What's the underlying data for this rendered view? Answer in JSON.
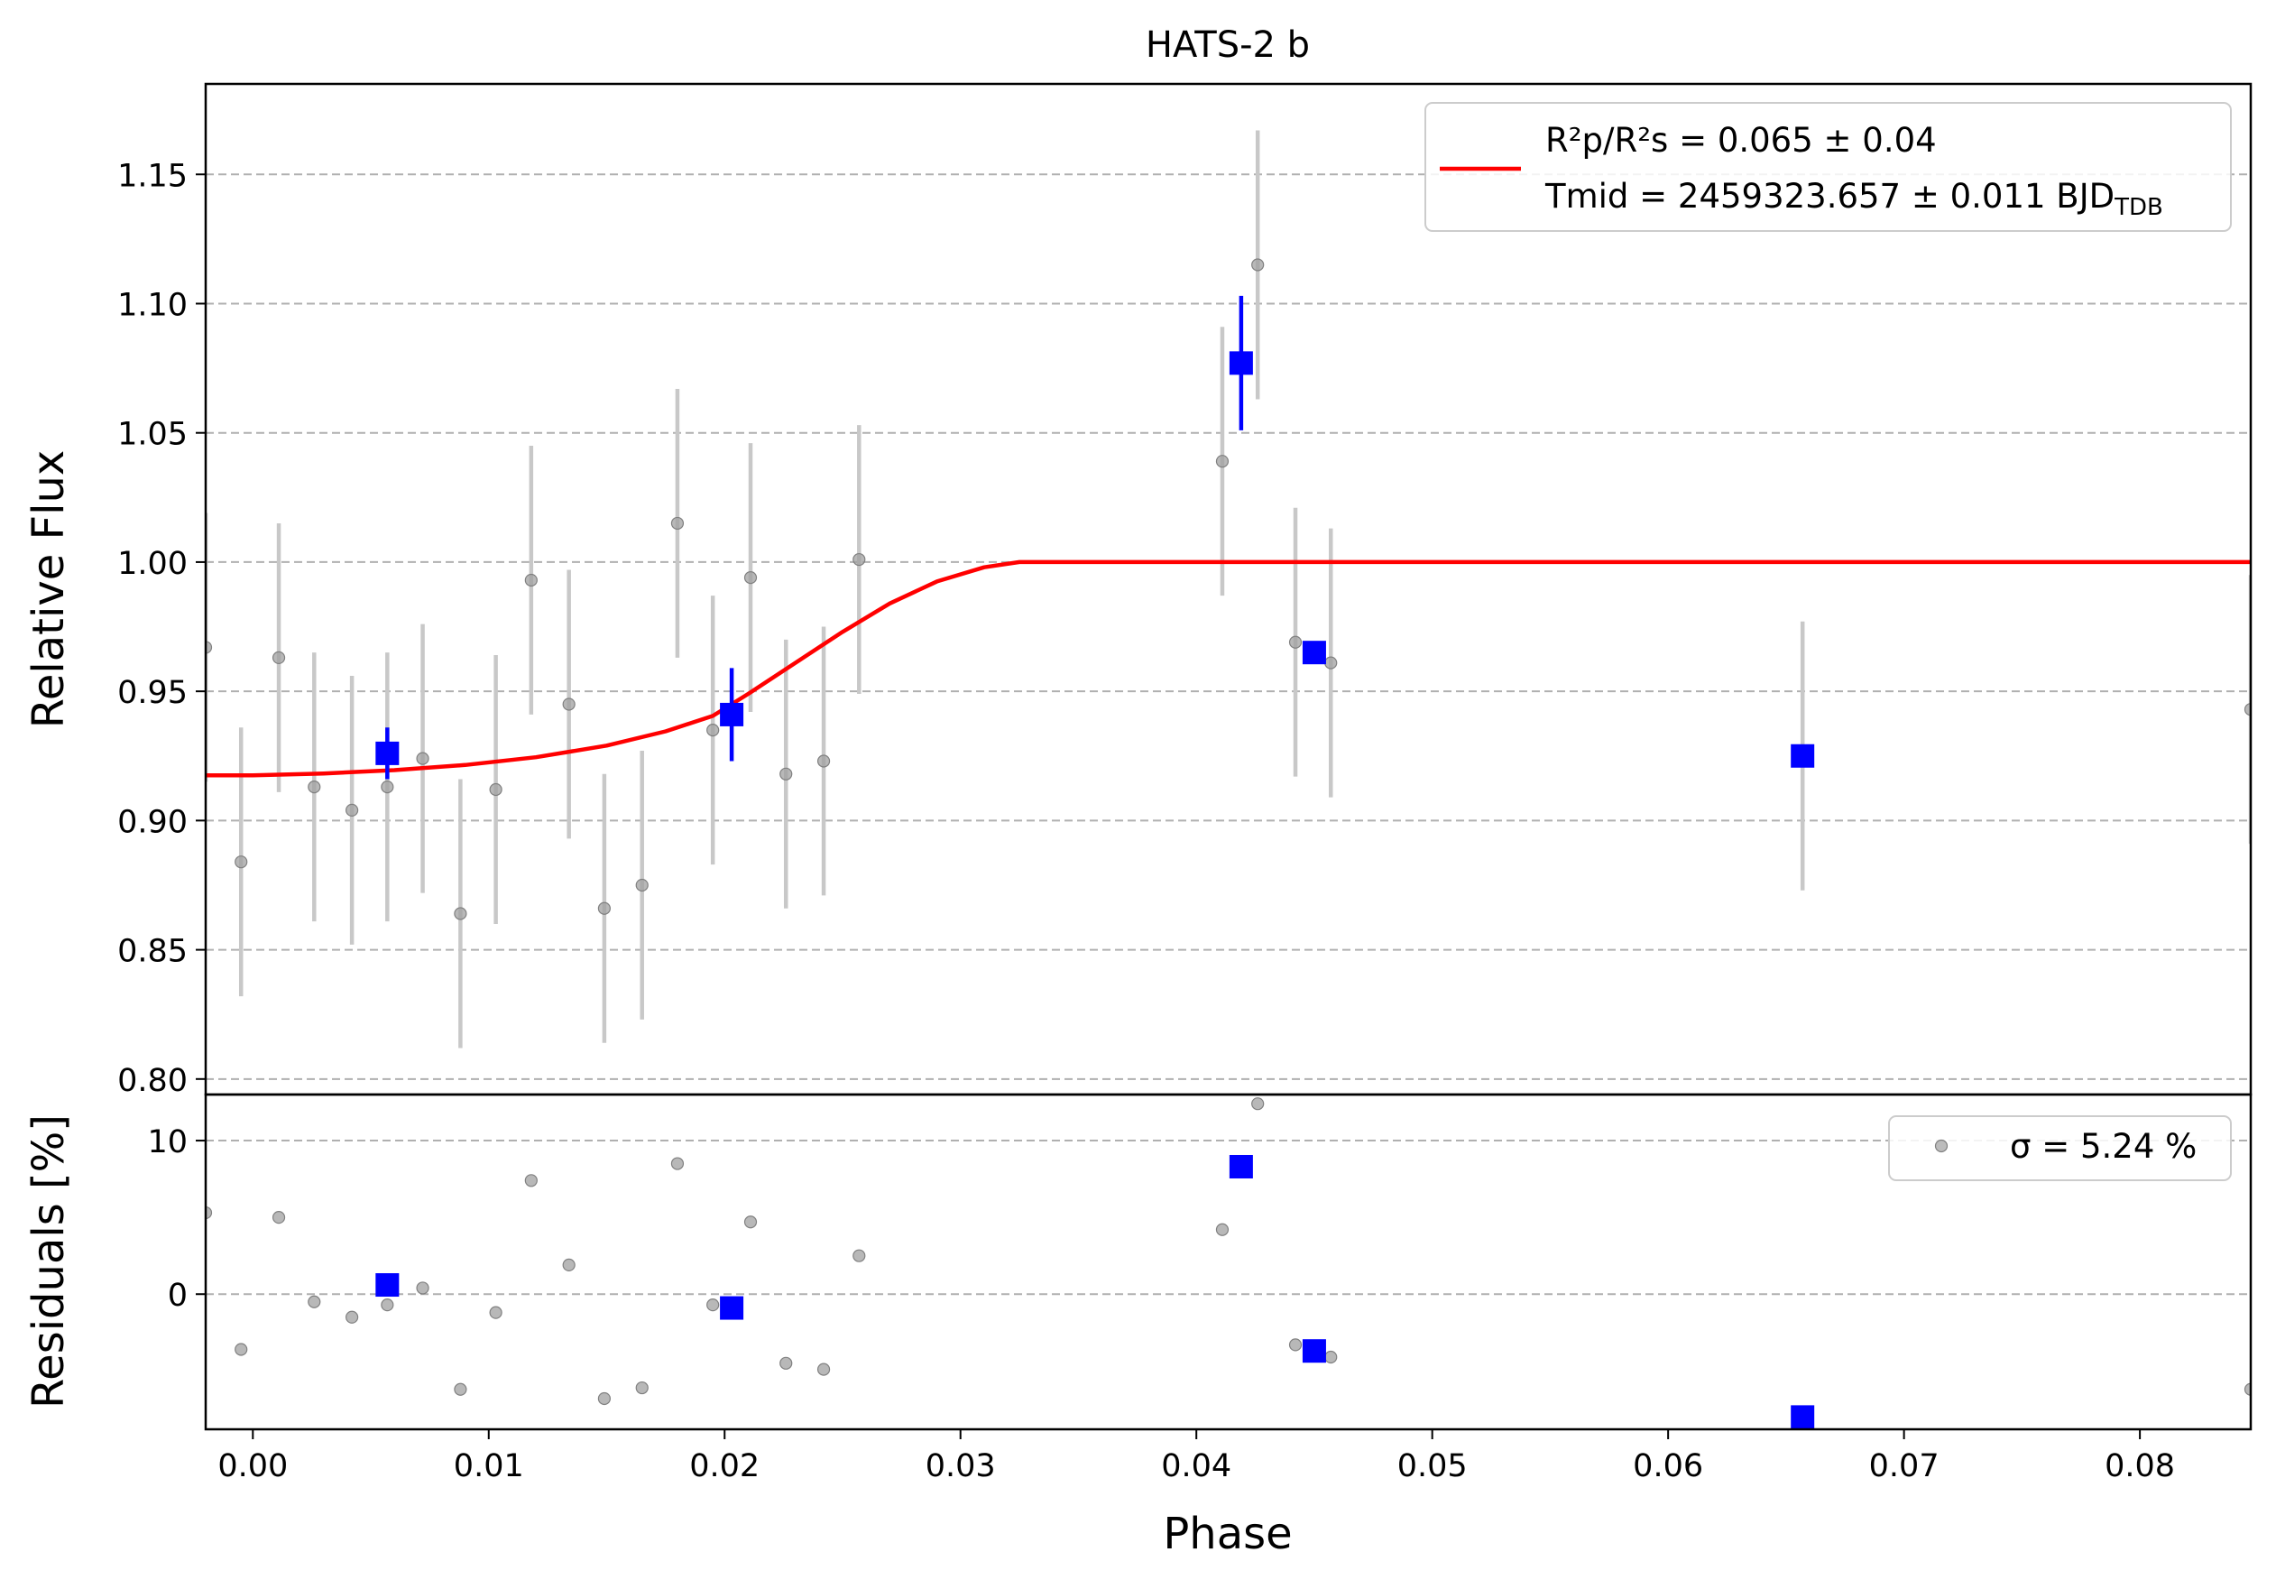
{
  "chart_data": [
    {
      "type": "scatter",
      "panel": "main",
      "title": "HATS-2 b",
      "xlabel": "",
      "ylabel": "Relative Flux",
      "xlim": [
        -0.002,
        0.0847
      ],
      "ylim": [
        0.794,
        1.185
      ],
      "yticks": [
        "0.80",
        "0.85",
        "0.90",
        "0.95",
        "1.00",
        "1.05",
        "1.10",
        "1.15"
      ],
      "grid": "horizontal dashed",
      "legend": {
        "placement": "upper right",
        "line1": "R²p/R²s = 0.065 ± 0.04",
        "line2": "Tmid = 2459323.657 ± 0.011 BJD",
        "line2_subscript": "TDB",
        "line_color": "#ff0000"
      },
      "series": [
        {
          "kind": "raw",
          "color": "#a0a0a0",
          "points": [
            {
              "x": -0.002,
              "y": 0.967,
              "err": 0.052
            },
            {
              "x": -0.0005,
              "y": 0.884,
              "err": 0.052
            },
            {
              "x": 0.0011,
              "y": 0.963,
              "err": 0.052
            },
            {
              "x": 0.0026,
              "y": 0.913,
              "err": 0.052
            },
            {
              "x": 0.0042,
              "y": 0.904,
              "err": 0.052
            },
            {
              "x": 0.0057,
              "y": 0.913,
              "err": 0.052
            },
            {
              "x": 0.0072,
              "y": 0.924,
              "err": 0.052
            },
            {
              "x": 0.0088,
              "y": 0.864,
              "err": 0.052
            },
            {
              "x": 0.0103,
              "y": 0.912,
              "err": 0.052
            },
            {
              "x": 0.0118,
              "y": 0.993,
              "err": 0.052
            },
            {
              "x": 0.0134,
              "y": 0.945,
              "err": 0.052
            },
            {
              "x": 0.0149,
              "y": 0.866,
              "err": 0.052
            },
            {
              "x": 0.0165,
              "y": 0.875,
              "err": 0.052
            },
            {
              "x": 0.018,
              "y": 1.015,
              "err": 0.052
            },
            {
              "x": 0.0195,
              "y": 0.935,
              "err": 0.052
            },
            {
              "x": 0.0211,
              "y": 0.994,
              "err": 0.052
            },
            {
              "x": 0.0226,
              "y": 0.918,
              "err": 0.052
            },
            {
              "x": 0.0242,
              "y": 0.923,
              "err": 0.052
            },
            {
              "x": 0.0257,
              "y": 1.001,
              "err": 0.052
            },
            {
              "x": 0.0411,
              "y": 1.039,
              "err": 0.052
            },
            {
              "x": 0.0426,
              "y": 1.115,
              "err": 0.052
            },
            {
              "x": 0.0442,
              "y": 0.969,
              "err": 0.052
            },
            {
              "x": 0.0457,
              "y": 0.961,
              "err": 0.052
            },
            {
              "x": 0.0657,
              "y": 0.925,
              "err": 0.052
            },
            {
              "x": 0.0847,
              "y": 0.943,
              "err": 0.052
            }
          ]
        },
        {
          "kind": "binned",
          "color": "#0000ff",
          "points": [
            {
              "x": 0.0057,
              "y": 0.926,
              "err": 0.01
            },
            {
              "x": 0.0203,
              "y": 0.941,
              "err": 0.018
            },
            {
              "x": 0.0419,
              "y": 1.077,
              "err": 0.026
            },
            {
              "x": 0.045,
              "y": 0.965,
              "err": 0.0
            },
            {
              "x": 0.0657,
              "y": 0.925,
              "err": 0.0
            }
          ]
        },
        {
          "kind": "model",
          "color": "#ff0000",
          "points": [
            {
              "x": -0.002,
              "y": 0.9175
            },
            {
              "x": 0.0,
              "y": 0.9175
            },
            {
              "x": 0.003,
              "y": 0.9182
            },
            {
              "x": 0.006,
              "y": 0.9195
            },
            {
              "x": 0.009,
              "y": 0.9215
            },
            {
              "x": 0.012,
              "y": 0.9245
            },
            {
              "x": 0.015,
              "y": 0.929
            },
            {
              "x": 0.0175,
              "y": 0.9345
            },
            {
              "x": 0.0195,
              "y": 0.9405
            },
            {
              "x": 0.021,
              "y": 0.949
            },
            {
              "x": 0.023,
              "y": 0.961
            },
            {
              "x": 0.025,
              "y": 0.973
            },
            {
              "x": 0.027,
              "y": 0.984
            },
            {
              "x": 0.029,
              "y": 0.9925
            },
            {
              "x": 0.031,
              "y": 0.998
            },
            {
              "x": 0.0325,
              "y": 1.0
            },
            {
              "x": 0.04,
              "y": 1.0
            },
            {
              "x": 0.06,
              "y": 1.0
            },
            {
              "x": 0.0847,
              "y": 1.0
            }
          ]
        }
      ]
    },
    {
      "type": "scatter",
      "panel": "residuals",
      "xlabel": "Phase",
      "ylabel": "Residuals [%]",
      "xlim": [
        -0.002,
        0.0847
      ],
      "ylim": [
        -8.8,
        13.0
      ],
      "xticks": [
        "0.00",
        "0.01",
        "0.02",
        "0.03",
        "0.04",
        "0.05",
        "0.06",
        "0.07",
        "0.08"
      ],
      "yticks": [
        "0",
        "10"
      ],
      "grid": "horizontal dashed",
      "legend": {
        "placement": "upper right",
        "label": "σ = 5.24 %"
      },
      "series": [
        {
          "kind": "raw",
          "color": "#a0a0a0",
          "points": [
            {
              "x": -0.002,
              "y": 5.3
            },
            {
              "x": -0.0005,
              "y": -3.6
            },
            {
              "x": 0.0011,
              "y": 5.0
            },
            {
              "x": 0.0026,
              "y": -0.5
            },
            {
              "x": 0.0042,
              "y": -1.5
            },
            {
              "x": 0.0057,
              "y": -0.7
            },
            {
              "x": 0.0072,
              "y": 0.4
            },
            {
              "x": 0.0088,
              "y": -6.2
            },
            {
              "x": 0.0103,
              "y": -1.2
            },
            {
              "x": 0.0118,
              "y": 7.4
            },
            {
              "x": 0.0134,
              "y": 1.9
            },
            {
              "x": 0.0149,
              "y": -6.8
            },
            {
              "x": 0.0165,
              "y": -6.1
            },
            {
              "x": 0.018,
              "y": 8.5
            },
            {
              "x": 0.0195,
              "y": -0.7
            },
            {
              "x": 0.0211,
              "y": 4.7
            },
            {
              "x": 0.0226,
              "y": -4.5
            },
            {
              "x": 0.0242,
              "y": -4.9
            },
            {
              "x": 0.0257,
              "y": 2.5
            },
            {
              "x": 0.0411,
              "y": 4.2
            },
            {
              "x": 0.0426,
              "y": 12.4
            },
            {
              "x": 0.0442,
              "y": -3.3
            },
            {
              "x": 0.0457,
              "y": -4.1
            },
            {
              "x": 0.0847,
              "y": -6.2
            }
          ]
        },
        {
          "kind": "binned",
          "color": "#0000ff",
          "points": [
            {
              "x": 0.0057,
              "y": 0.6
            },
            {
              "x": 0.0203,
              "y": -0.9
            },
            {
              "x": 0.0419,
              "y": 8.3
            },
            {
              "x": 0.045,
              "y": -3.7
            },
            {
              "x": 0.0657,
              "y": -8.0
            }
          ]
        }
      ]
    }
  ]
}
